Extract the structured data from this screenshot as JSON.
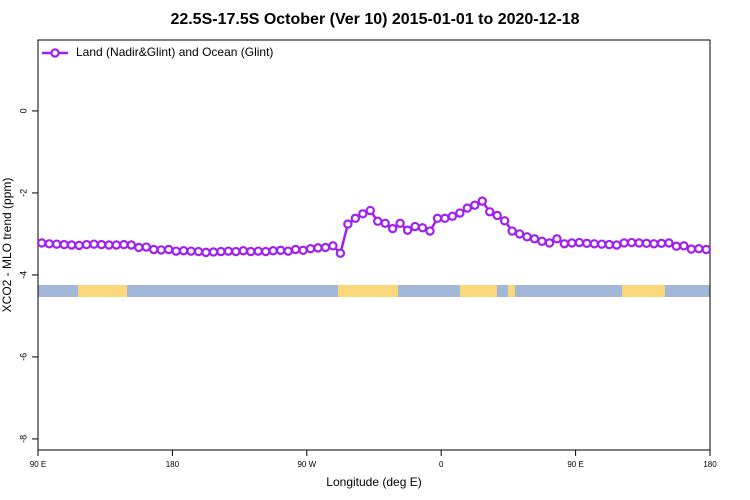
{
  "chart_data": {
    "type": "line",
    "title": "22.5S-17.5S October (Ver 10)   2015-01-01 to 2020-12-18",
    "xlabel": "Longitude (deg E)",
    "ylabel": "XCO2 - MLO trend (ppm)",
    "xlim": [
      90,
      540
    ],
    "xticks": [
      {
        "value": 90,
        "label": "90 E"
      },
      180,
      {
        "value": 270,
        "label": "90 W"
      },
      {
        "value": 360,
        "label": "0"
      },
      {
        "value": 450,
        "label": "90 E"
      },
      {
        "value": 540,
        "label": "180"
      }
    ],
    "ylim": [
      -8.27,
      1.73
    ],
    "yticks": [
      0,
      -2,
      -4,
      -6,
      -8
    ],
    "legend": "upper left",
    "x": [
      92.5,
      97.5,
      102.5,
      107.5,
      112.5,
      117.5,
      122.5,
      127.5,
      132.5,
      137.5,
      142.5,
      147.5,
      152.5,
      157.5,
      162.5,
      167.5,
      172.5,
      177.5,
      182.5,
      187.5,
      192.5,
      197.5,
      202.5,
      207.5,
      212.5,
      217.5,
      222.5,
      227.5,
      232.5,
      237.5,
      242.5,
      247.5,
      252.5,
      257.5,
      262.5,
      267.5,
      272.5,
      277.5,
      282.5,
      287.5,
      292.5,
      297.5,
      302.5,
      307.5,
      312.5,
      317.5,
      322.5,
      327.5,
      332.5,
      337.5,
      342.5,
      347.5,
      352.5,
      357.5,
      362.5,
      367.5,
      372.5,
      377.5,
      382.5,
      387.5,
      392.5,
      397.5,
      402.5,
      407.5,
      412.5,
      417.5,
      422.5,
      427.5,
      432.5,
      437.5,
      442.5,
      447.5,
      452.5,
      457.5,
      462.5,
      467.5,
      472.5,
      477.5,
      482.5,
      487.5,
      492.5,
      497.5,
      502.5,
      507.5,
      512.5,
      517.5,
      522.5,
      527.5,
      532.5,
      537.5
    ],
    "series": [
      {
        "name": "Land (Nadir&Glint) and Ocean (Glint)",
        "color": "#a020f0",
        "values": [
          -3.22,
          -3.24,
          -3.25,
          -3.26,
          -3.27,
          -3.28,
          -3.26,
          -3.25,
          -3.26,
          -3.27,
          -3.27,
          -3.26,
          -3.27,
          -3.33,
          -3.32,
          -3.38,
          -3.39,
          -3.38,
          -3.42,
          -3.41,
          -3.42,
          -3.43,
          -3.45,
          -3.44,
          -3.43,
          -3.42,
          -3.43,
          -3.41,
          -3.43,
          -3.42,
          -3.43,
          -3.41,
          -3.4,
          -3.42,
          -3.38,
          -3.4,
          -3.36,
          -3.34,
          -3.33,
          -3.29,
          -3.47,
          -2.76,
          -2.62,
          -2.51,
          -2.43,
          -2.69,
          -2.74,
          -2.87,
          -2.74,
          -2.91,
          -2.82,
          -2.85,
          -2.93,
          -2.62,
          -2.62,
          -2.57,
          -2.49,
          -2.37,
          -2.3,
          -2.2,
          -2.46,
          -2.55,
          -2.68,
          -2.93,
          -3.0,
          -3.07,
          -3.12,
          -3.18,
          -3.22,
          -3.12,
          -3.24,
          -3.22,
          -3.21,
          -3.23,
          -3.24,
          -3.25,
          -3.26,
          -3.27,
          -3.22,
          -3.21,
          -3.22,
          -3.23,
          -3.24,
          -3.23,
          -3.22,
          -3.3,
          -3.29,
          -3.37,
          -3.36,
          -3.38
        ]
      }
    ]
  }
}
